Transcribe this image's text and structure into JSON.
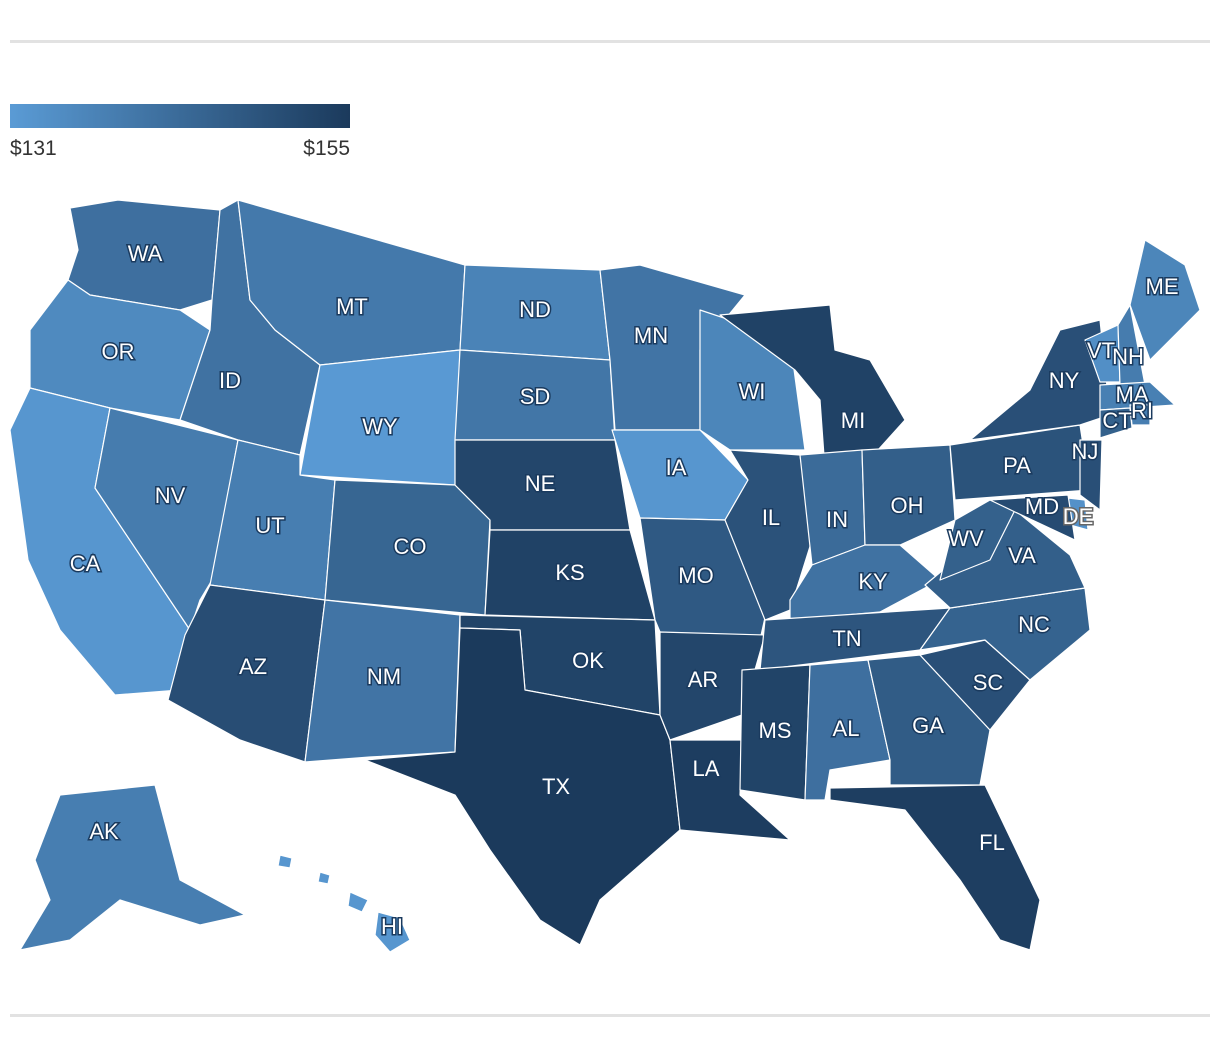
{
  "legend": {
    "min_label": "$131",
    "max_label": "$155",
    "min_value": 131,
    "max_value": 155,
    "color_low": "#5a9bd5",
    "color_high": "#1b3a5c"
  },
  "map_data": {
    "type": "choropleth",
    "region": "United States",
    "states": [
      {
        "code": "WA",
        "shade": 0.45
      },
      {
        "code": "OR",
        "shade": 0.18
      },
      {
        "code": "CA",
        "shade": 0.05
      },
      {
        "code": "NV",
        "shade": 0.32
      },
      {
        "code": "ID",
        "shade": 0.42
      },
      {
        "code": "MT",
        "shade": 0.35
      },
      {
        "code": "WY",
        "shade": 0.02
      },
      {
        "code": "UT",
        "shade": 0.3
      },
      {
        "code": "AZ",
        "shade": 0.8
      },
      {
        "code": "CO",
        "shade": 0.55
      },
      {
        "code": "NM",
        "shade": 0.4
      },
      {
        "code": "ND",
        "shade": 0.25
      },
      {
        "code": "SD",
        "shade": 0.38
      },
      {
        "code": "NE",
        "shade": 0.88
      },
      {
        "code": "KS",
        "shade": 0.92
      },
      {
        "code": "OK",
        "shade": 0.9
      },
      {
        "code": "TX",
        "shade": 1.0
      },
      {
        "code": "MN",
        "shade": 0.4
      },
      {
        "code": "IA",
        "shade": 0.05
      },
      {
        "code": "MO",
        "shade": 0.68
      },
      {
        "code": "AR",
        "shade": 0.88
      },
      {
        "code": "LA",
        "shade": 0.97
      },
      {
        "code": "WI",
        "shade": 0.22
      },
      {
        "code": "IL",
        "shade": 0.75
      },
      {
        "code": "MI",
        "shade": 0.92
      },
      {
        "code": "IN",
        "shade": 0.5
      },
      {
        "code": "OH",
        "shade": 0.62
      },
      {
        "code": "KY",
        "shade": 0.42
      },
      {
        "code": "TN",
        "shade": 0.72
      },
      {
        "code": "MS",
        "shade": 0.9
      },
      {
        "code": "AL",
        "shade": 0.45
      },
      {
        "code": "GA",
        "shade": 0.65
      },
      {
        "code": "FL",
        "shade": 0.96
      },
      {
        "code": "SC",
        "shade": 0.78
      },
      {
        "code": "NC",
        "shade": 0.58
      },
      {
        "code": "VA",
        "shade": 0.62
      },
      {
        "code": "WV",
        "shade": 0.6
      },
      {
        "code": "PA",
        "shade": 0.74
      },
      {
        "code": "NY",
        "shade": 0.78
      },
      {
        "code": "VT",
        "shade": 0.12
      },
      {
        "code": "NH",
        "shade": 0.32
      },
      {
        "code": "ME",
        "shade": 0.22
      },
      {
        "code": "MA",
        "shade": 0.28
      },
      {
        "code": "RI",
        "shade": 0.3
      },
      {
        "code": "CT",
        "shade": 0.6
      },
      {
        "code": "NJ",
        "shade": 0.78
      },
      {
        "code": "DE",
        "shade": 0.1
      },
      {
        "code": "MD",
        "shade": 0.82
      },
      {
        "code": "AK",
        "shade": 0.3
      },
      {
        "code": "HI",
        "shade": 0.05
      }
    ]
  }
}
